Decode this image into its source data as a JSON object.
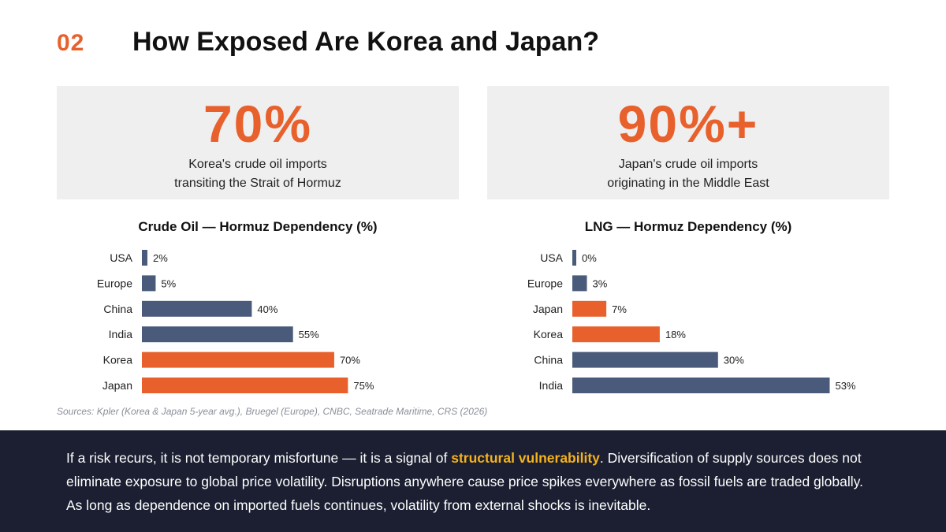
{
  "header": {
    "section_number": "02",
    "title": "How Exposed Are Korea and Japan?"
  },
  "stats": [
    {
      "value": "70%",
      "line1": "Korea's crude oil imports",
      "line2": "transiting the Strait of Hormuz"
    },
    {
      "value": "90%+",
      "line1": "Japan's crude oil imports",
      "line2": "originating in the Middle East"
    }
  ],
  "colors": {
    "accent": "#e8602c",
    "neutral_bar": "#4a5a7a",
    "footer_bg": "#1b1f31",
    "highlight": "#f6b21b"
  },
  "chart_data": [
    {
      "type": "bar",
      "orientation": "horizontal",
      "title": "Crude Oil — Hormuz Dependency (%)",
      "categories": [
        "USA",
        "Europe",
        "China",
        "India",
        "Korea",
        "Japan"
      ],
      "values": [
        2,
        5,
        40,
        55,
        70,
        75
      ],
      "value_labels": [
        "2%",
        "5%",
        "40%",
        "55%",
        "70%",
        "75%"
      ],
      "highlighted": [
        "Korea",
        "Japan"
      ],
      "xlim": [
        0,
        80
      ],
      "grid": false
    },
    {
      "type": "bar",
      "orientation": "horizontal",
      "title": "LNG — Hormuz Dependency (%)",
      "categories": [
        "USA",
        "Europe",
        "Japan",
        "Korea",
        "China",
        "India"
      ],
      "values": [
        0,
        3,
        7,
        18,
        30,
        53
      ],
      "value_labels": [
        "0%",
        "3%",
        "7%",
        "18%",
        "30%",
        "53%"
      ],
      "highlighted": [
        "Japan",
        "Korea"
      ],
      "xlim": [
        0,
        60
      ],
      "grid": false
    }
  ],
  "sources": "Sources: Kpler (Korea & Japan 5-year avg.), Bruegel (Europe), CNBC, Seatrade Maritime, CRS (2026)",
  "footer": {
    "before": "If a risk recurs, it is not temporary misfortune — it is a signal of ",
    "highlight": "structural vulnerability",
    "after": ". Diversification of supply sources does not eliminate exposure to global price volatility. Disruptions anywhere cause price spikes everywhere as fossil fuels are traded globally. As long as dependence on imported fuels continues, volatility from external shocks is inevitable."
  }
}
